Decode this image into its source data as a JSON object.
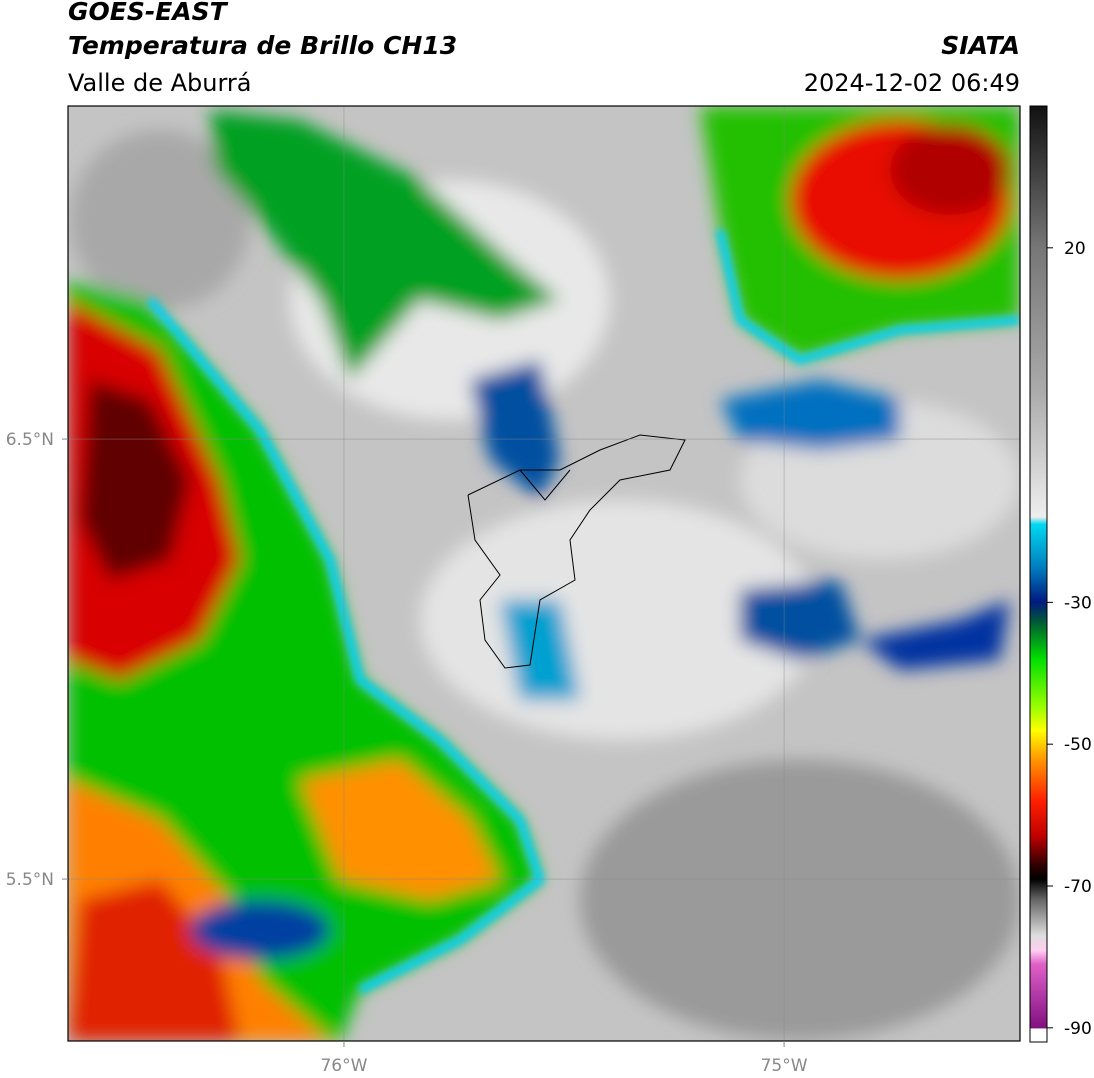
{
  "header": {
    "satellite": "GOES-EAST",
    "product": "Temperatura de Brillo CH13",
    "region": "Valle de Aburrá",
    "organization": "SIATA",
    "datetime": "2024-12-02 06:49"
  },
  "map": {
    "xlim": [
      -76.627,
      -74.464
    ],
    "ylim": [
      5.132,
      7.257
    ],
    "xticks": [
      {
        "value": -76,
        "label": "76°W"
      },
      {
        "value": -75,
        "label": "75°W"
      }
    ],
    "yticks": [
      {
        "value": 6.5,
        "label": "6.5°N"
      },
      {
        "value": 5.5,
        "label": "5.5°N"
      }
    ],
    "grid": true
  },
  "colorbar": {
    "lim": [
      -92,
      40
    ],
    "ticks": [
      20,
      -30,
      -50,
      -70,
      -90
    ]
  }
}
